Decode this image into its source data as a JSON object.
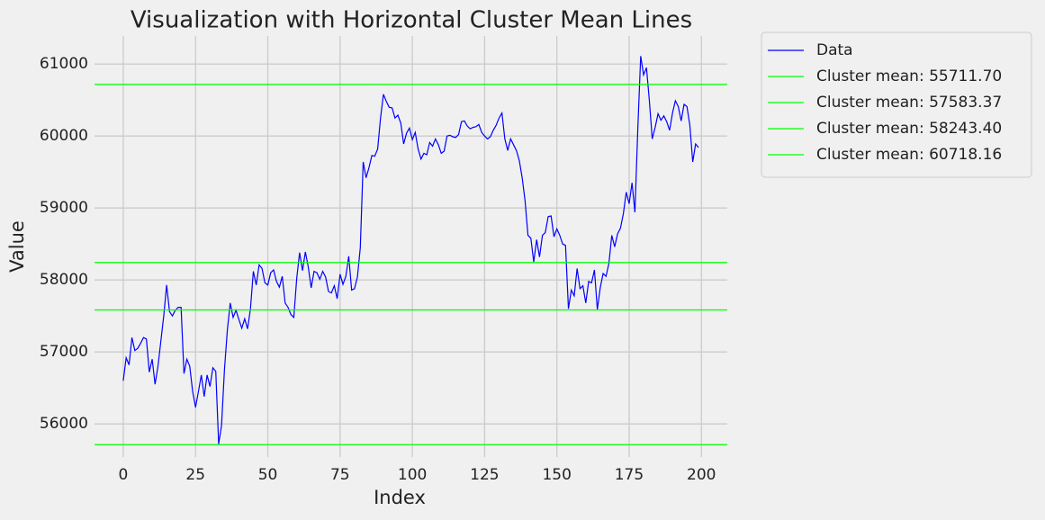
{
  "chart_data": {
    "type": "line",
    "title": "Visualization with Horizontal Cluster Mean Lines",
    "xlabel": "Index",
    "ylabel": "Value",
    "x": [
      0,
      1,
      2,
      3,
      4,
      5,
      6,
      7,
      8,
      9,
      10,
      11,
      12,
      13,
      14,
      15,
      16,
      17,
      18,
      19,
      20,
      21,
      22,
      23,
      24,
      25,
      26,
      27,
      28,
      29,
      30,
      31,
      32,
      33,
      34,
      35,
      36,
      37,
      38,
      39,
      40,
      41,
      42,
      43,
      44,
      45,
      46,
      47,
      48,
      49,
      50,
      51,
      52,
      53,
      54,
      55,
      56,
      57,
      58,
      59,
      60,
      61,
      62,
      63,
      64,
      65,
      66,
      67,
      68,
      69,
      70,
      71,
      72,
      73,
      74,
      75,
      76,
      77,
      78,
      79,
      80,
      81,
      82,
      83,
      84,
      85,
      86,
      87,
      88,
      89,
      90,
      91,
      92,
      93,
      94,
      95,
      96,
      97,
      98,
      99,
      100,
      101,
      102,
      103,
      104,
      105,
      106,
      107,
      108,
      109,
      110,
      111,
      112,
      113,
      114,
      115,
      116,
      117,
      118,
      119,
      120,
      121,
      122,
      123,
      124,
      125,
      126,
      127,
      128,
      129,
      130,
      131,
      132,
      133,
      134,
      135,
      136,
      137,
      138,
      139,
      140,
      141,
      142,
      143,
      144,
      145,
      146,
      147,
      148,
      149,
      150,
      151,
      152,
      153,
      154,
      155,
      156,
      157,
      158,
      159,
      160,
      161,
      162,
      163,
      164,
      165,
      166,
      167,
      168,
      169,
      170,
      171,
      172,
      173,
      174,
      175,
      176,
      177,
      178,
      179,
      180,
      181,
      182,
      183,
      184,
      185,
      186,
      187,
      188,
      189,
      190,
      191,
      192,
      193,
      194,
      195,
      196,
      197,
      198,
      199
    ],
    "series": [
      {
        "name": "Data",
        "color": "#0000ff",
        "values": [
          56600,
          56920,
          56820,
          57200,
          57020,
          57050,
          57120,
          57200,
          57180,
          56720,
          56900,
          56550,
          56800,
          57150,
          57500,
          57930,
          57560,
          57500,
          57580,
          57620,
          57620,
          56700,
          56900,
          56800,
          56450,
          56230,
          56450,
          56680,
          56380,
          56680,
          56520,
          56780,
          56730,
          55720,
          55980,
          56750,
          57300,
          57680,
          57480,
          57580,
          57450,
          57330,
          57460,
          57320,
          57600,
          58120,
          57930,
          58210,
          58160,
          57960,
          57930,
          58100,
          58140,
          57980,
          57900,
          58050,
          57680,
          57620,
          57520,
          57480,
          58020,
          58380,
          58130,
          58390,
          58180,
          57890,
          58120,
          58100,
          58010,
          58120,
          58040,
          57840,
          57820,
          57920,
          57740,
          58080,
          57940,
          58050,
          58330,
          57860,
          57880,
          58040,
          58450,
          59640,
          59420,
          59560,
          59730,
          59720,
          59820,
          60250,
          60580,
          60480,
          60400,
          60390,
          60250,
          60290,
          60180,
          59890,
          60040,
          60110,
          59950,
          60050,
          59820,
          59680,
          59760,
          59740,
          59910,
          59860,
          59960,
          59880,
          59760,
          59790,
          60000,
          60010,
          59990,
          59980,
          60020,
          60200,
          60210,
          60140,
          60100,
          60120,
          60130,
          60160,
          60050,
          60000,
          59960,
          59990,
          60080,
          60150,
          60250,
          60320,
          59960,
          59800,
          59960,
          59880,
          59800,
          59660,
          59420,
          59100,
          58620,
          58580,
          58250,
          58560,
          58320,
          58620,
          58660,
          58880,
          58890,
          58600,
          58710,
          58620,
          58500,
          58480,
          57600,
          57860,
          57780,
          58160,
          57880,
          57920,
          57680,
          57980,
          57960,
          58140,
          57590,
          57890,
          58090,
          58050,
          58230,
          58620,
          58460,
          58640,
          58720,
          58920,
          59220,
          59060,
          59350,
          58940,
          60100,
          61110,
          60850,
          60950,
          60490,
          59960,
          60120,
          60310,
          60220,
          60280,
          60200,
          60080,
          60320,
          60490,
          60410,
          60210,
          60440,
          60410,
          60150,
          59640,
          59890,
          59840
        ]
      }
    ],
    "hlines": [
      {
        "name": "Cluster mean: 55711.70",
        "color": "#00ff00",
        "value": 55711.7
      },
      {
        "name": "Cluster mean: 57583.37",
        "color": "#00ff00",
        "value": 57583.37
      },
      {
        "name": "Cluster mean: 58243.40",
        "color": "#00ff00",
        "value": 58243.4
      },
      {
        "name": "Cluster mean: 60718.16",
        "color": "#00ff00",
        "value": 60718.16
      }
    ],
    "xlim": [
      -9.95,
      208.95
    ],
    "xticks": [
      0,
      25,
      50,
      75,
      100,
      125,
      150,
      175,
      200
    ],
    "ylim": [
      55540,
      61390
    ],
    "yticks": [
      56000,
      57000,
      58000,
      59000,
      60000,
      61000
    ],
    "grid": true,
    "legend": "outside-right"
  }
}
